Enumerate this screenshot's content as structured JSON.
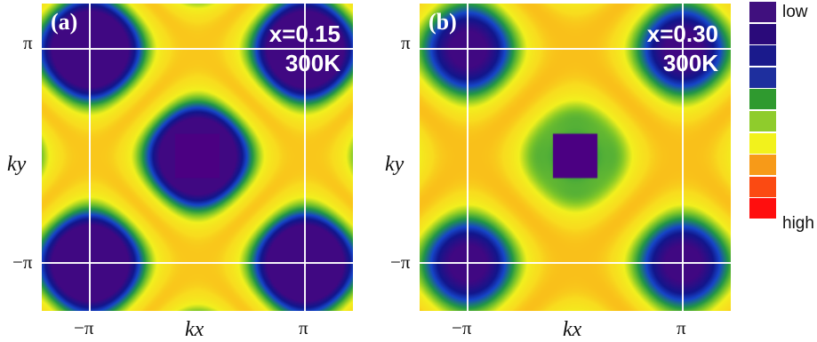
{
  "chart_data": [
    {
      "type": "heatmap",
      "panel_label": "(a)",
      "annotation_line1": "x=0.15",
      "annotation_line2": "300K",
      "xlabel": "kx",
      "ylabel": "ky",
      "x_ticks": [
        "−π",
        "π"
      ],
      "y_ticks": [
        "π",
        "−π"
      ],
      "center_block_color": "#4b0082"
    },
    {
      "type": "heatmap",
      "panel_label": "(b)",
      "annotation_line1": "x=0.30",
      "annotation_line2": "300K",
      "xlabel": "kx",
      "ylabel": "ky",
      "x_ticks": [
        "−π",
        "π"
      ],
      "y_ticks": [
        "π",
        "−π"
      ],
      "center_block_color": "#4b0082"
    }
  ],
  "legend": {
    "low_label": "low",
    "high_label": "high",
    "colors": [
      "#40107e",
      "#2a0a7a",
      "#1a1a8c",
      "#1e2f9e",
      "#2f9a2f",
      "#8fcc2c",
      "#f2f21c",
      "#f79a18",
      "#fb4a12",
      "#ff0e0e"
    ]
  }
}
